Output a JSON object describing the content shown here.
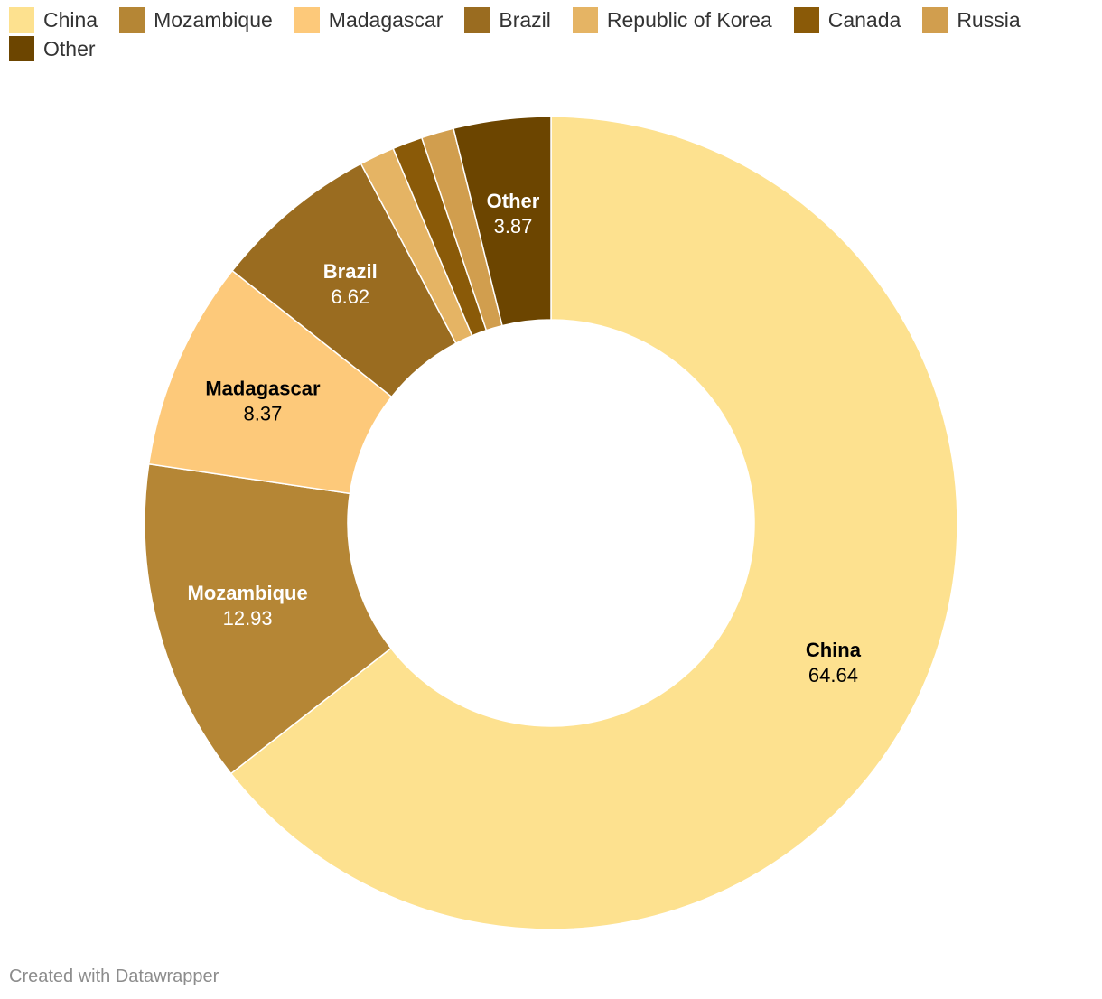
{
  "chart_data": {
    "type": "pie",
    "donut": true,
    "title": "",
    "legend_position": "top",
    "slices": [
      {
        "label": "China",
        "value": 64.64,
        "color": "#fde18f",
        "label_color": "#000000",
        "show_label": true
      },
      {
        "label": "Mozambique",
        "value": 12.93,
        "color": "#b58635",
        "label_color": "#ffffff",
        "show_label": true
      },
      {
        "label": "Madagascar",
        "value": 8.37,
        "color": "#fdc97a",
        "label_color": "#000000",
        "show_label": true
      },
      {
        "label": "Brazil",
        "value": 6.62,
        "color": "#9a6c20",
        "label_color": "#ffffff",
        "show_label": true
      },
      {
        "label": "Republic of Korea",
        "value": 1.4,
        "color": "#e5b464",
        "label_color": "#000000",
        "show_label": false
      },
      {
        "label": "Canada",
        "value": 1.2,
        "color": "#8a5a08",
        "label_color": "#ffffff",
        "show_label": false
      },
      {
        "label": "Russia",
        "value": 1.3,
        "color": "#d19e4e",
        "label_color": "#000000",
        "show_label": false
      },
      {
        "label": "Other",
        "value": 3.87,
        "color": "#6c4500",
        "label_color": "#ffffff",
        "show_label": true
      }
    ]
  },
  "footer": {
    "credit": "Created with Datawrapper"
  }
}
